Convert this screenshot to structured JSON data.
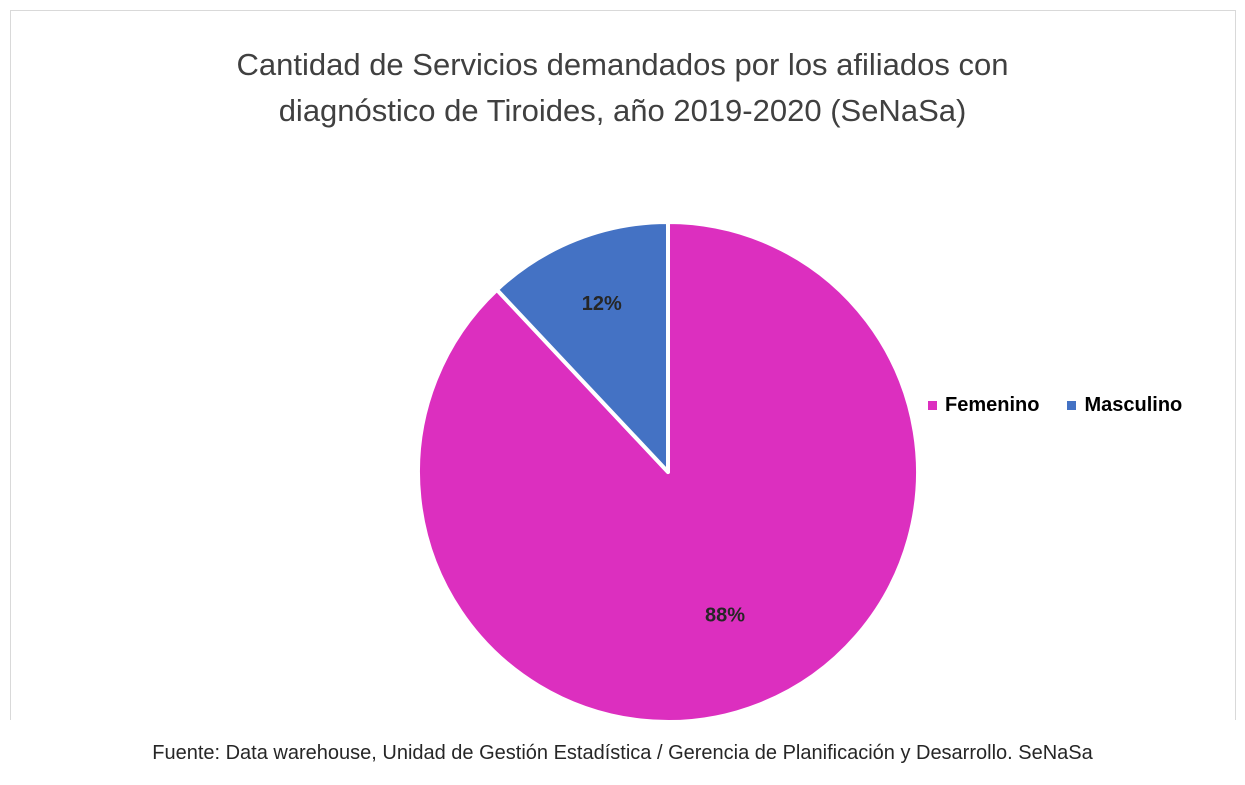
{
  "chart_data": {
    "type": "pie",
    "title_lines": [
      "Cantidad de Servicios demandados por los afiliados con",
      "diagnóstico de Tiroides, año 2019-2020 (SeNaSa)"
    ],
    "categories": [
      "Femenino",
      "Masculino"
    ],
    "values": [
      88,
      12
    ],
    "data_labels": [
      "88%",
      "12%"
    ],
    "colors": [
      "#dc2fbf",
      "#4472c4"
    ],
    "legend_position": "right"
  },
  "source_note": "Fuente: Data warehouse, Unidad de Gestión Estadística / Gerencia de Planificación y Desarrollo. SeNaSa"
}
